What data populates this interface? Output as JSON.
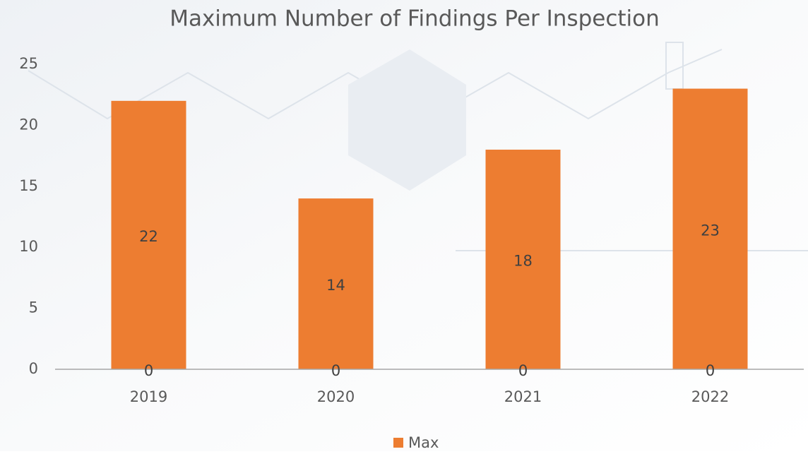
{
  "chart_data": {
    "type": "bar",
    "title": "Maximum Number of Findings Per Inspection",
    "categories": [
      "2019",
      "2020",
      "2021",
      "2022"
    ],
    "series": [
      {
        "name": "Max",
        "color": "#ed7d31",
        "values": [
          22,
          14,
          18,
          23
        ]
      },
      {
        "values": [
          0,
          0,
          0,
          0
        ]
      }
    ],
    "ylim": [
      0,
      25
    ],
    "yticks": [
      0,
      5,
      10,
      15,
      20,
      25
    ],
    "grid": false,
    "legend": "bottom"
  }
}
